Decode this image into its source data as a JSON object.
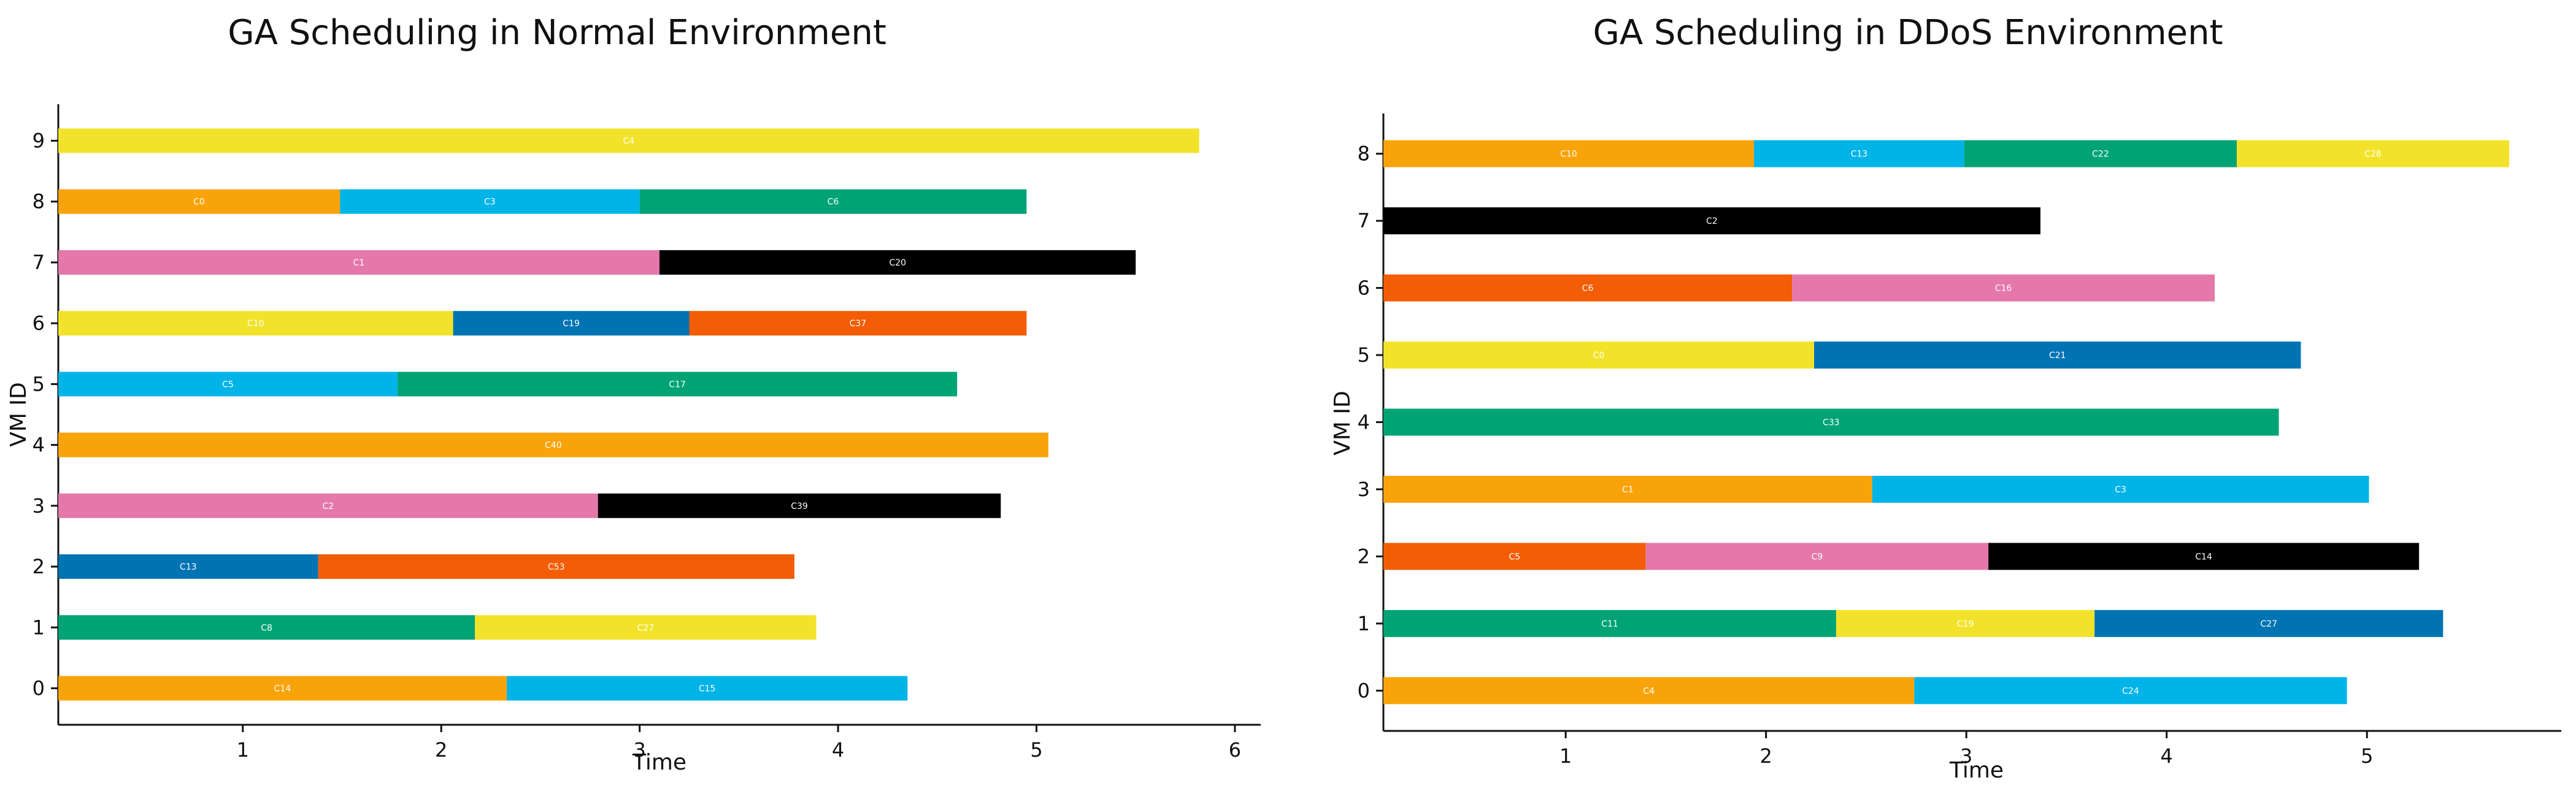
{
  "chart_data": [
    {
      "type": "gantt",
      "title": "GA Scheduling in Normal Environment",
      "xlabel": "Time",
      "ylabel": "VM ID",
      "xlim": [
        0.07,
        6.13
      ],
      "xticks": [
        1,
        2,
        3,
        4,
        5,
        6
      ],
      "ylim": [
        -0.6,
        9.6
      ],
      "yticks": [
        0,
        1,
        2,
        3,
        4,
        5,
        6,
        7,
        8,
        9
      ],
      "grid": false,
      "rows": [
        {
          "vm": 0,
          "tasks": [
            {
              "label": "C14",
              "start": 0.07,
              "end": 2.33,
              "color": "#F9A30A"
            },
            {
              "label": "C15",
              "start": 2.33,
              "end": 4.35,
              "color": "#00B4E8"
            }
          ]
        },
        {
          "vm": 1,
          "tasks": [
            {
              "label": "C8",
              "start": 0.07,
              "end": 2.17,
              "color": "#00A374"
            },
            {
              "label": "C27",
              "start": 2.17,
              "end": 3.89,
              "color": "#F2E32A"
            }
          ]
        },
        {
          "vm": 2,
          "tasks": [
            {
              "label": "C13",
              "start": 0.07,
              "end": 1.38,
              "color": "#0073B3"
            },
            {
              "label": "C53",
              "start": 1.38,
              "end": 3.78,
              "color": "#F35D05"
            }
          ]
        },
        {
          "vm": 3,
          "tasks": [
            {
              "label": "C2",
              "start": 0.07,
              "end": 2.79,
              "color": "#E478AA"
            },
            {
              "label": "C39",
              "start": 2.79,
              "end": 4.82,
              "color": "#000000"
            }
          ]
        },
        {
          "vm": 4,
          "tasks": [
            {
              "label": "C40",
              "start": 0.07,
              "end": 5.06,
              "color": "#F9A30A"
            }
          ]
        },
        {
          "vm": 5,
          "tasks": [
            {
              "label": "C5",
              "start": 0.07,
              "end": 1.78,
              "color": "#00B4E8"
            },
            {
              "label": "C17",
              "start": 1.78,
              "end": 4.6,
              "color": "#00A374"
            }
          ]
        },
        {
          "vm": 6,
          "tasks": [
            {
              "label": "C10",
              "start": 0.07,
              "end": 2.06,
              "color": "#F2E32A"
            },
            {
              "label": "C19",
              "start": 2.06,
              "end": 3.25,
              "color": "#0073B3"
            },
            {
              "label": "C37",
              "start": 3.25,
              "end": 4.95,
              "color": "#F35D05"
            }
          ]
        },
        {
          "vm": 7,
          "tasks": [
            {
              "label": "C1",
              "start": 0.07,
              "end": 3.1,
              "color": "#E478AA"
            },
            {
              "label": "C20",
              "start": 3.1,
              "end": 5.5,
              "color": "#000000"
            }
          ]
        },
        {
          "vm": 8,
          "tasks": [
            {
              "label": "C0",
              "start": 0.07,
              "end": 1.49,
              "color": "#F9A30A"
            },
            {
              "label": "C3",
              "start": 1.49,
              "end": 3.0,
              "color": "#00B4E8"
            },
            {
              "label": "C6",
              "start": 3.0,
              "end": 4.95,
              "color": "#00A374"
            }
          ]
        },
        {
          "vm": 9,
          "tasks": [
            {
              "label": "C4",
              "start": 0.07,
              "end": 5.82,
              "color": "#F2E32A"
            }
          ]
        }
      ]
    },
    {
      "type": "gantt",
      "title": "GA Scheduling in DDoS Environment",
      "xlabel": "Time",
      "ylabel": "VM ID",
      "xlim": [
        0.09,
        5.97
      ],
      "xticks": [
        1,
        2,
        3,
        4,
        5
      ],
      "ylim": [
        -0.6,
        8.6
      ],
      "yticks": [
        0,
        1,
        2,
        3,
        4,
        5,
        6,
        7,
        8
      ],
      "grid": false,
      "rows": [
        {
          "vm": 0,
          "tasks": [
            {
              "label": "C4",
              "start": 0.09,
              "end": 2.74,
              "color": "#F9A30A"
            },
            {
              "label": "C24",
              "start": 2.74,
              "end": 4.9,
              "color": "#00B4E8"
            }
          ]
        },
        {
          "vm": 1,
          "tasks": [
            {
              "label": "C11",
              "start": 0.09,
              "end": 2.35,
              "color": "#00A374"
            },
            {
              "label": "C19",
              "start": 2.35,
              "end": 3.64,
              "color": "#F2E32A"
            },
            {
              "label": "C27",
              "start": 3.64,
              "end": 5.38,
              "color": "#0073B3"
            }
          ]
        },
        {
          "vm": 2,
          "tasks": [
            {
              "label": "C5",
              "start": 0.09,
              "end": 1.4,
              "color": "#F35D05"
            },
            {
              "label": "C9",
              "start": 1.4,
              "end": 3.11,
              "color": "#E478AA"
            },
            {
              "label": "C14",
              "start": 3.11,
              "end": 5.26,
              "color": "#000000"
            }
          ]
        },
        {
          "vm": 3,
          "tasks": [
            {
              "label": "C1",
              "start": 0.09,
              "end": 2.53,
              "color": "#F9A30A"
            },
            {
              "label": "C3",
              "start": 2.53,
              "end": 5.01,
              "color": "#00B4E8"
            }
          ]
        },
        {
          "vm": 4,
          "tasks": [
            {
              "label": "C33",
              "start": 0.09,
              "end": 4.56,
              "color": "#00A374"
            }
          ]
        },
        {
          "vm": 5,
          "tasks": [
            {
              "label": "C0",
              "start": 0.09,
              "end": 2.24,
              "color": "#F2E32A"
            },
            {
              "label": "C21",
              "start": 2.24,
              "end": 4.67,
              "color": "#0073B3"
            }
          ]
        },
        {
          "vm": 6,
          "tasks": [
            {
              "label": "C6",
              "start": 0.09,
              "end": 2.13,
              "color": "#F35D05"
            },
            {
              "label": "C16",
              "start": 2.13,
              "end": 4.24,
              "color": "#E478AA"
            }
          ]
        },
        {
          "vm": 7,
          "tasks": [
            {
              "label": "C2",
              "start": 0.09,
              "end": 3.37,
              "color": "#000000"
            }
          ]
        },
        {
          "vm": 8,
          "tasks": [
            {
              "label": "C10",
              "start": 0.09,
              "end": 1.94,
              "color": "#F9A30A"
            },
            {
              "label": "C13",
              "start": 1.94,
              "end": 2.99,
              "color": "#00B4E8"
            },
            {
              "label": "C22",
              "start": 2.99,
              "end": 4.35,
              "color": "#00A374"
            },
            {
              "label": "C28",
              "start": 4.35,
              "end": 5.71,
              "color": "#F2E32A"
            }
          ]
        }
      ]
    }
  ]
}
